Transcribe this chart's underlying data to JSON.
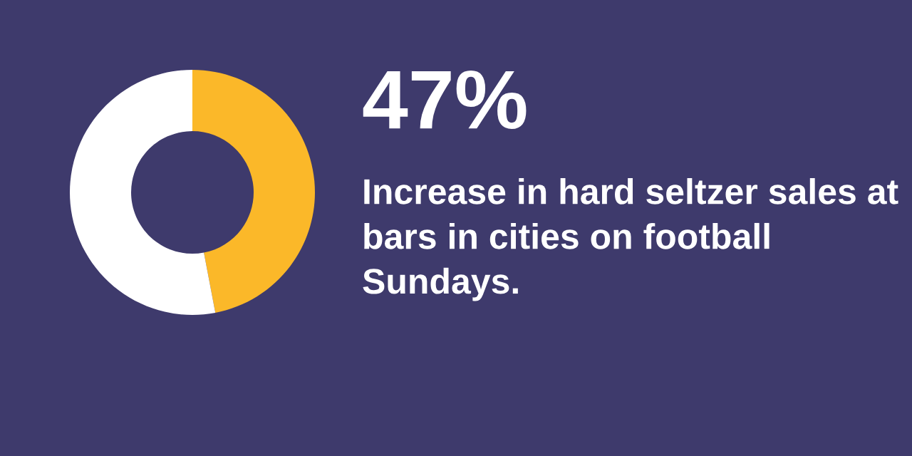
{
  "chart_data": {
    "type": "donut",
    "title": "47%",
    "subtitle": "Increase in hard seltzer sales at bars in cities on football Sundays.",
    "categories": [
      null,
      null
    ],
    "values": [
      47,
      53
    ],
    "colors": [
      "#fbb829",
      "#ffffff"
    ]
  }
}
